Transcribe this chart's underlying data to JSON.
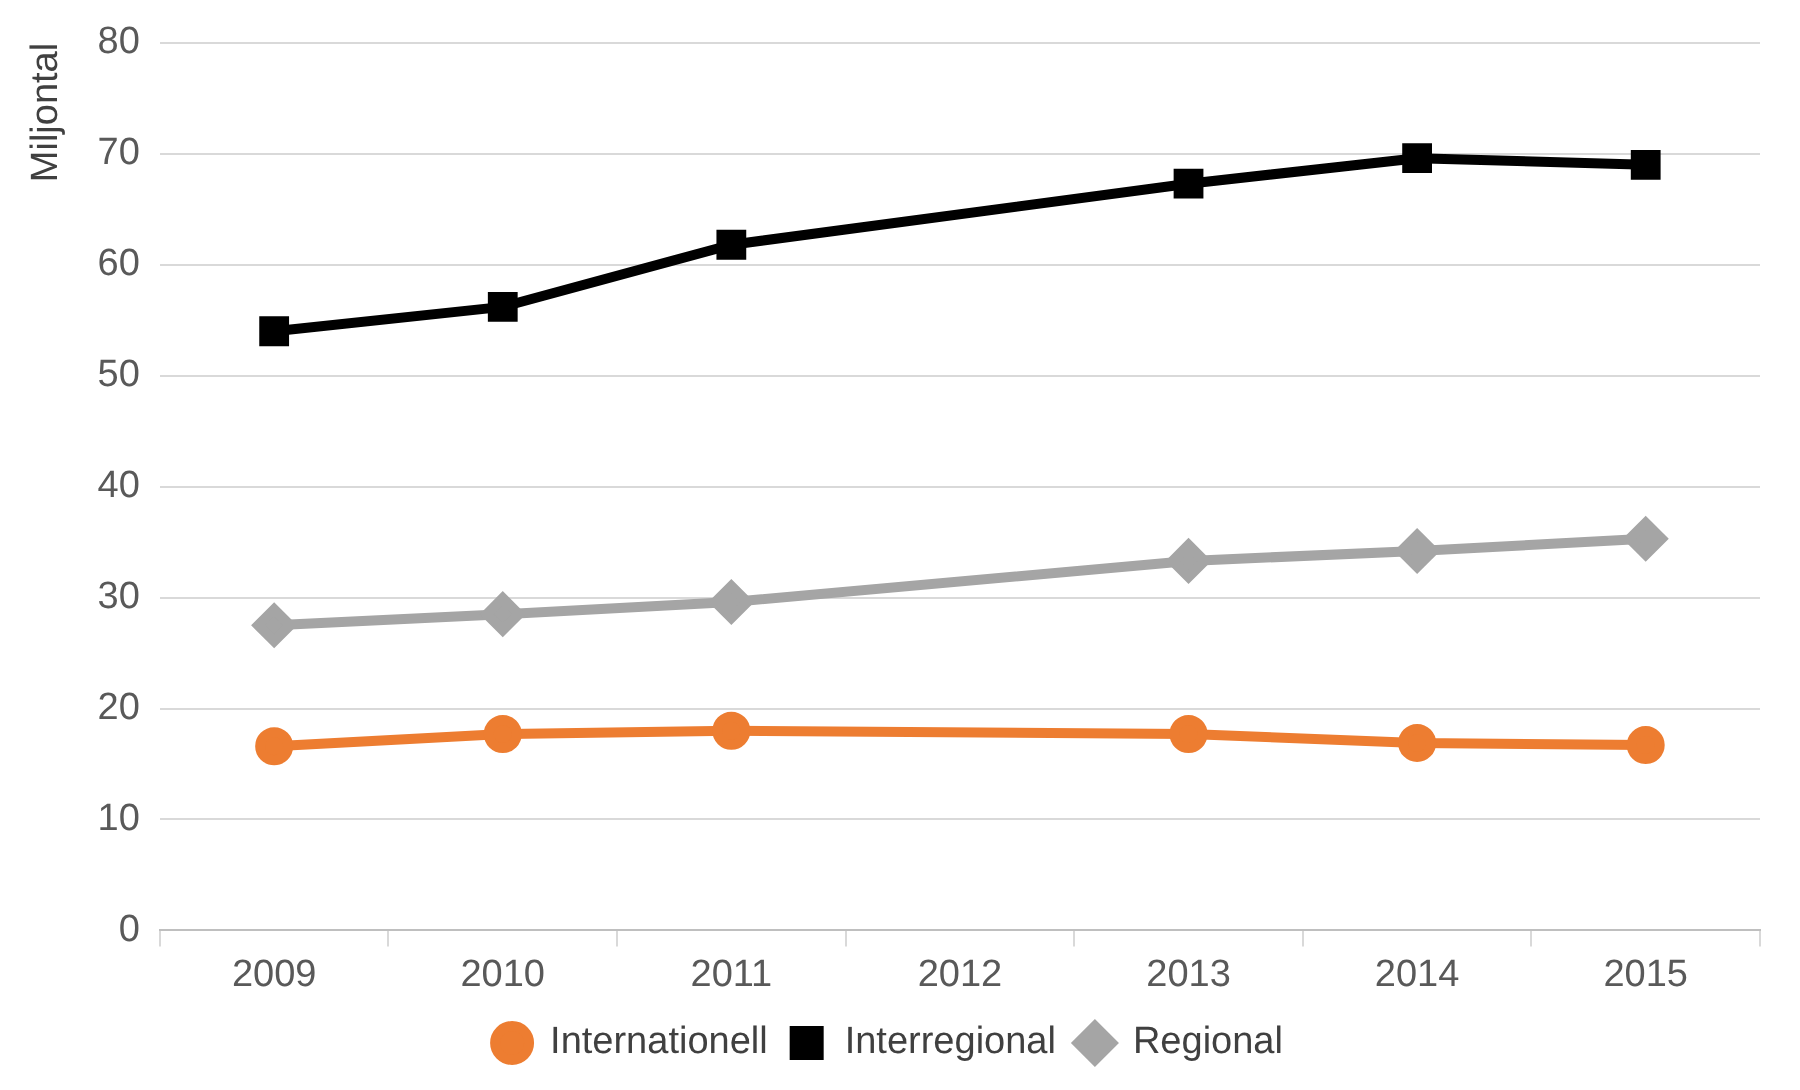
{
  "chart_data": {
    "type": "line",
    "ylabel": "Miljontal",
    "categories": [
      "2009",
      "2010",
      "2011",
      "2012",
      "2013",
      "2014",
      "2015"
    ],
    "ylim": [
      0,
      80
    ],
    "yticks": [
      0,
      10,
      20,
      30,
      40,
      50,
      60,
      70,
      80
    ],
    "grid": "y",
    "legend": "bottom",
    "line_style": "solid",
    "series": [
      {
        "name": "Internationell",
        "color": "#ed7d31",
        "marker": "circle",
        "values": [
          16.6,
          17.7,
          18.0,
          null,
          17.7,
          16.9,
          16.7
        ]
      },
      {
        "name": "Interregional",
        "color": "#000000",
        "marker": "square",
        "values": [
          54.0,
          56.2,
          61.8,
          null,
          67.3,
          69.6,
          69.0
        ]
      },
      {
        "name": "Regional",
        "color": "#a5a5a5",
        "marker": "diamond",
        "values": [
          27.5,
          28.5,
          29.6,
          null,
          33.3,
          34.2,
          35.3
        ]
      }
    ]
  }
}
